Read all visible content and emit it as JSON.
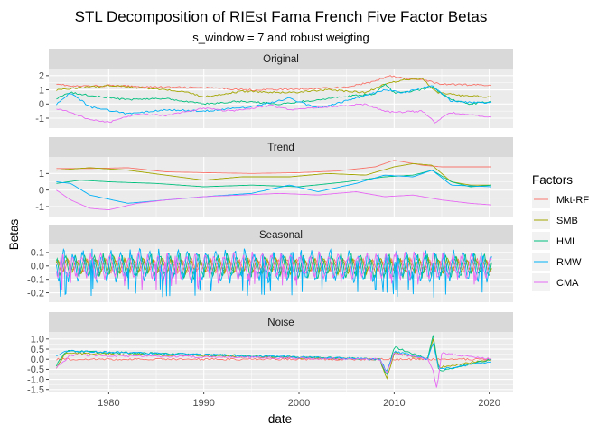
{
  "chart_data": {
    "type": "line",
    "title": "STL Decomposition of RIEst Fama French Five Factor Betas",
    "subtitle": "s_window = 7 and robust weigting",
    "xlabel": "date",
    "ylabel": "Betas",
    "x_ticks": [
      "1980",
      "1990",
      "2000",
      "2010",
      "2020"
    ],
    "x_range": [
      1973.7,
      2022.5
    ],
    "legend": {
      "title": "Factors",
      "placement": "right",
      "items": [
        {
          "name": "Mkt-RF",
          "color": "#F8766D"
        },
        {
          "name": "SMB",
          "color": "#A3A500"
        },
        {
          "name": "HML",
          "color": "#00BF7D"
        },
        {
          "name": "RMW",
          "color": "#00B0F6"
        },
        {
          "name": "CMA",
          "color": "#E76BF3"
        }
      ]
    },
    "grid": "on",
    "panels": [
      {
        "label": "Original",
        "ylim": [
          -1.7,
          2.5
        ],
        "y_ticks": [
          "-1",
          "0",
          "1",
          "2"
        ],
        "series": {
          "Mkt-RF": [
            [
              1974.5,
              1.45
            ],
            [
              1976,
              1.25
            ],
            [
              1980,
              1.3
            ],
            [
              1985,
              1.2
            ],
            [
              1990,
              1.15
            ],
            [
              1995,
              1.0
            ],
            [
              2000,
              1.05
            ],
            [
              2005,
              1.2
            ],
            [
              2008,
              1.6
            ],
            [
              2009.5,
              2.0
            ],
            [
              2011,
              1.8
            ],
            [
              2013,
              1.7
            ],
            [
              2015,
              1.4
            ],
            [
              2018,
              1.35
            ],
            [
              2020.3,
              1.35
            ]
          ],
          "SMB": [
            [
              1974.5,
              1.0
            ],
            [
              1976,
              1.1
            ],
            [
              1980,
              1.3
            ],
            [
              1984,
              1.1
            ],
            [
              1988,
              0.9
            ],
            [
              1990,
              0.5
            ],
            [
              1994,
              0.9
            ],
            [
              1999,
              0.8
            ],
            [
              2003,
              1.0
            ],
            [
              2007,
              0.8
            ],
            [
              2009,
              1.4
            ],
            [
              2011,
              1.7
            ],
            [
              2013,
              1.8
            ],
            [
              2014.5,
              0.8
            ],
            [
              2017,
              0.6
            ],
            [
              2020.3,
              0.5
            ]
          ],
          "HML": [
            [
              1974.5,
              0.4
            ],
            [
              1976,
              0.8
            ],
            [
              1978,
              0.6
            ],
            [
              1982,
              0.3
            ],
            [
              1986,
              0.4
            ],
            [
              1990,
              0.0
            ],
            [
              1994,
              0.2
            ],
            [
              1998,
              0.0
            ],
            [
              2002,
              0.3
            ],
            [
              2006,
              0.6
            ],
            [
              2008,
              0.7
            ],
            [
              2009,
              1.4
            ],
            [
              2010,
              0.8
            ],
            [
              2012,
              0.9
            ],
            [
              2014,
              1.2
            ],
            [
              2016,
              0.3
            ],
            [
              2018,
              0.0
            ],
            [
              2020.3,
              0.2
            ]
          ],
          "RMW": [
            [
              1974.5,
              0.0
            ],
            [
              1976,
              0.8
            ],
            [
              1978,
              -0.2
            ],
            [
              1982,
              -0.7
            ],
            [
              1986,
              -0.4
            ],
            [
              1990,
              -0.5
            ],
            [
              1995,
              -0.2
            ],
            [
              1999,
              0.4
            ],
            [
              2002,
              -0.3
            ],
            [
              2006,
              0.4
            ],
            [
              2009,
              1.0
            ],
            [
              2011,
              0.8
            ],
            [
              2014,
              1.3
            ],
            [
              2016,
              0.2
            ],
            [
              2018,
              0.1
            ],
            [
              2020.3,
              0.1
            ]
          ],
          "CMA": [
            [
              1974.5,
              -0.3
            ],
            [
              1976,
              -0.6
            ],
            [
              1978,
              -1.1
            ],
            [
              1980,
              -1.3
            ],
            [
              1983,
              -0.7
            ],
            [
              1986,
              -0.8
            ],
            [
              1990,
              -0.3
            ],
            [
              1993,
              -0.5
            ],
            [
              1997,
              -0.1
            ],
            [
              1999,
              -0.4
            ],
            [
              2003,
              -0.2
            ],
            [
              2007,
              0.0
            ],
            [
              2008.5,
              -0.4
            ],
            [
              2010,
              -0.6
            ],
            [
              2013,
              -0.5
            ],
            [
              2014.3,
              -1.3
            ],
            [
              2016,
              -0.6
            ],
            [
              2018,
              -0.8
            ],
            [
              2020.3,
              -0.9
            ]
          ]
        }
      },
      {
        "label": "Trend",
        "ylim": [
          -1.6,
          2.0
        ],
        "y_ticks": [
          "-1",
          "0",
          "1"
        ],
        "series": {
          "Mkt-RF": [
            [
              1974.5,
              1.3
            ],
            [
              1978,
              1.3
            ],
            [
              1982,
              1.35
            ],
            [
              1986,
              1.1
            ],
            [
              1990,
              1.05
            ],
            [
              1995,
              1.0
            ],
            [
              2000,
              1.05
            ],
            [
              2004,
              1.15
            ],
            [
              2008,
              1.4
            ],
            [
              2010,
              1.8
            ],
            [
              2013,
              1.5
            ],
            [
              2015,
              1.4
            ],
            [
              2020.3,
              1.4
            ]
          ],
          "SMB": [
            [
              1974.5,
              1.2
            ],
            [
              1978,
              1.35
            ],
            [
              1982,
              1.2
            ],
            [
              1986,
              0.9
            ],
            [
              1990,
              0.6
            ],
            [
              1994,
              0.8
            ],
            [
              1999,
              0.8
            ],
            [
              2003,
              1.0
            ],
            [
              2007,
              0.9
            ],
            [
              2010,
              1.4
            ],
            [
              2012,
              1.6
            ],
            [
              2014,
              1.5
            ],
            [
              2016,
              0.5
            ],
            [
              2018,
              0.3
            ],
            [
              2020.3,
              0.3
            ]
          ],
          "HML": [
            [
              1974.5,
              0.4
            ],
            [
              1977,
              0.6
            ],
            [
              1980,
              0.5
            ],
            [
              1985,
              0.4
            ],
            [
              1990,
              0.2
            ],
            [
              1995,
              0.3
            ],
            [
              2000,
              0.2
            ],
            [
              2005,
              0.5
            ],
            [
              2009,
              0.8
            ],
            [
              2012,
              0.9
            ],
            [
              2014,
              1.2
            ],
            [
              2016,
              0.5
            ],
            [
              2018,
              0.2
            ],
            [
              2020.3,
              0.3
            ]
          ],
          "RMW": [
            [
              1974.5,
              0.5
            ],
            [
              1976,
              0.4
            ],
            [
              1978,
              -0.3
            ],
            [
              1982,
              -0.8
            ],
            [
              1986,
              -0.6
            ],
            [
              1990,
              -0.4
            ],
            [
              1995,
              -0.2
            ],
            [
              1999,
              0.3
            ],
            [
              2002,
              -0.1
            ],
            [
              2006,
              0.4
            ],
            [
              2009,
              0.9
            ],
            [
              2012,
              0.8
            ],
            [
              2014,
              1.2
            ],
            [
              2016,
              0.3
            ],
            [
              2020.3,
              0.2
            ]
          ],
          "CMA": [
            [
              1974.5,
              0.0
            ],
            [
              1976,
              -0.6
            ],
            [
              1978,
              -1.1
            ],
            [
              1980,
              -1.2
            ],
            [
              1983,
              -0.8
            ],
            [
              1986,
              -0.6
            ],
            [
              1990,
              -0.4
            ],
            [
              1994,
              -0.3
            ],
            [
              1998,
              -0.2
            ],
            [
              2002,
              -0.3
            ],
            [
              2006,
              -0.1
            ],
            [
              2009,
              -0.4
            ],
            [
              2012,
              -0.3
            ],
            [
              2015,
              -0.6
            ],
            [
              2018,
              -0.8
            ],
            [
              2020.3,
              -0.9
            ]
          ]
        }
      },
      {
        "label": "Seasonal",
        "ylim": [
          -0.27,
          0.16
        ],
        "y_ticks": [
          "-0.2",
          "-0.1",
          "0.0",
          "0.1"
        ],
        "series": {
          "Mkt-RF": {
            "amplitude": 0.05
          },
          "SMB": {
            "amplitude": 0.06
          },
          "HML": {
            "amplitude": 0.09
          },
          "RMW": {
            "amplitude": 0.12,
            "min": -0.24
          },
          "CMA": {
            "amplitude": 0.1,
            "min": -0.18
          }
        }
      },
      {
        "label": "Noise",
        "ylim": [
          -1.6,
          1.35
        ],
        "y_ticks": [
          "-1.5",
          "-1.0",
          "-0.5",
          "0.0",
          "0.5",
          "1.0"
        ],
        "series": {
          "Mkt-RF": [
            [
              1974.5,
              0.0
            ],
            [
              2020.3,
              0.0
            ]
          ],
          "SMB": [
            [
              1974.5,
              -0.4
            ],
            [
              1975.5,
              0.3
            ],
            [
              2008.5,
              0.0
            ],
            [
              2009.2,
              -1.0
            ],
            [
              2010,
              0.3
            ],
            [
              2013.5,
              0.0
            ],
            [
              2014.1,
              1.0
            ],
            [
              2014.7,
              -0.4
            ],
            [
              2020.3,
              0.0
            ]
          ],
          "HML": [
            [
              1974.5,
              -0.3
            ],
            [
              1975.5,
              0.4
            ],
            [
              2008.5,
              0.0
            ],
            [
              2009.2,
              -0.8
            ],
            [
              2010,
              0.6
            ],
            [
              2013.5,
              0.0
            ],
            [
              2014.1,
              1.2
            ],
            [
              2014.7,
              -0.6
            ],
            [
              2020.3,
              0.0
            ]
          ],
          "RMW": [
            [
              1974.5,
              0.2
            ],
            [
              1975.5,
              0.4
            ],
            [
              2008.5,
              0.0
            ],
            [
              2009.2,
              -0.6
            ],
            [
              2010,
              0.4
            ],
            [
              2013.5,
              0.0
            ],
            [
              2014.1,
              0.8
            ],
            [
              2014.7,
              -0.5
            ],
            [
              2020.3,
              -0.1
            ]
          ],
          "CMA": [
            [
              1974.5,
              -0.4
            ],
            [
              1976,
              0.2
            ],
            [
              2008.5,
              0.0
            ],
            [
              2009.2,
              -0.7
            ],
            [
              2010,
              0.3
            ],
            [
              2013.5,
              0.0
            ],
            [
              2014.1,
              -0.6
            ],
            [
              2014.5,
              -1.5
            ],
            [
              2015,
              0.3
            ],
            [
              2020.3,
              0.0
            ]
          ]
        }
      }
    ]
  }
}
